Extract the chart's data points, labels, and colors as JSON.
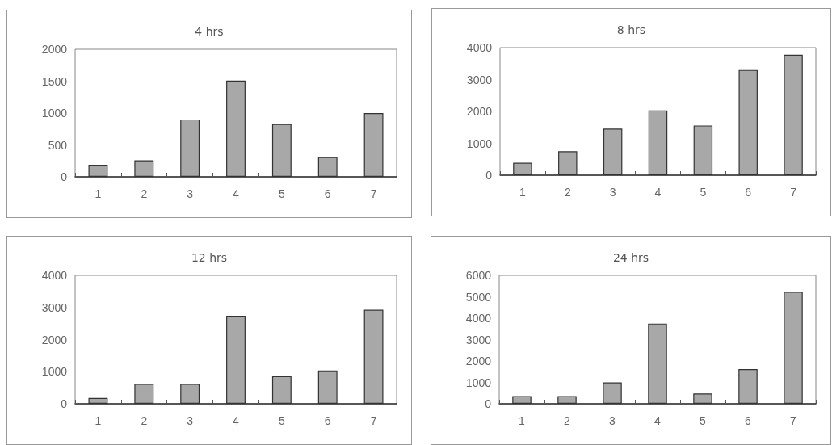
{
  "chart_data": [
    {
      "type": "bar",
      "title": "4 hrs",
      "categories": [
        "1",
        "2",
        "3",
        "4",
        "5",
        "6",
        "7"
      ],
      "values": [
        190,
        260,
        900,
        1510,
        830,
        310,
        1000
      ],
      "color": "#a8a8a8",
      "ylim": [
        0,
        2000
      ],
      "yticks": [
        0,
        500,
        1000,
        1500,
        2000
      ],
      "grid": false
    },
    {
      "type": "bar",
      "title": "8 hrs",
      "categories": [
        "1",
        "2",
        "3",
        "4",
        "5",
        "6",
        "7"
      ],
      "values": [
        390,
        750,
        1460,
        2030,
        1560,
        3300,
        3780
      ],
      "color": "#a8a8a8",
      "ylim": [
        0,
        4000
      ],
      "yticks": [
        0,
        1000,
        2000,
        3000,
        4000
      ],
      "grid": false
    },
    {
      "type": "bar",
      "title": "12 hrs",
      "categories": [
        "1",
        "2",
        "3",
        "4",
        "5",
        "6",
        "7"
      ],
      "values": [
        180,
        620,
        620,
        2740,
        860,
        1040,
        2930
      ],
      "color": "#a8a8a8",
      "ylim": [
        0,
        4000
      ],
      "yticks": [
        0,
        1000,
        2000,
        3000,
        4000
      ],
      "grid": false
    },
    {
      "type": "bar",
      "title": "24 hrs",
      "categories": [
        "1",
        "2",
        "3",
        "4",
        "5",
        "6",
        "7"
      ],
      "values": [
        360,
        360,
        1000,
        3750,
        480,
        1620,
        5230
      ],
      "color": "#a8a8a8",
      "ylim": [
        0,
        6000
      ],
      "yticks": [
        0,
        1000,
        2000,
        3000,
        4000,
        5000,
        6000
      ],
      "grid": false
    }
  ]
}
